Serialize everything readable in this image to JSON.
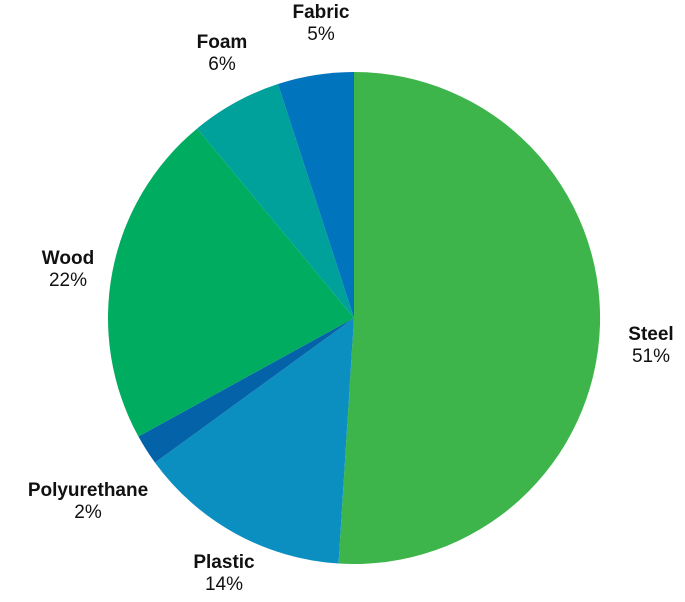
{
  "chart_data": {
    "type": "pie",
    "title": "",
    "categories": [
      "Steel",
      "Plastic",
      "Polyurethane",
      "Wood",
      "Foam",
      "Fabric"
    ],
    "values": [
      51,
      14,
      2,
      22,
      6,
      5
    ],
    "value_labels": [
      "51%",
      "14%",
      "2%",
      "22%",
      "6%",
      "5%"
    ],
    "colors": [
      "#3db54a",
      "#0a8fc0",
      "#0462a9",
      "#00ac60",
      "#00a19b",
      "#0074bd"
    ],
    "start": "12 o'clock",
    "direction": "clockwise",
    "legend": "none"
  }
}
